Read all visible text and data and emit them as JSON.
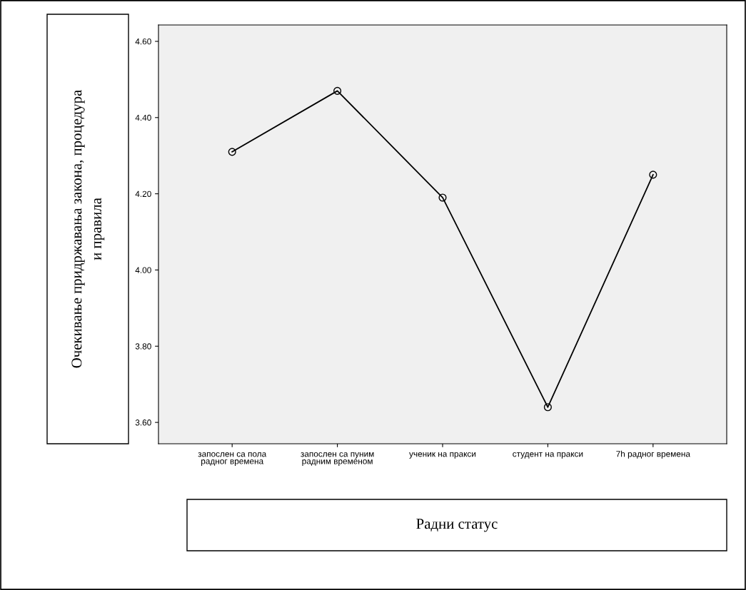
{
  "chart_data": {
    "type": "line",
    "categories": [
      "запослен са пола\nрадног времена",
      "запослен са пуним\nрадним временом",
      "ученик на пракси",
      "студент на пракси",
      "7h радног времена"
    ],
    "values": [
      4.31,
      4.47,
      4.19,
      3.64,
      4.25
    ],
    "color": "#000000",
    "ylim": [
      3.544,
      4.643
    ],
    "yticks": [
      {
        "value": 3.6,
        "label": "3.60"
      },
      {
        "value": 3.8,
        "label": "3.80"
      },
      {
        "value": 4.0,
        "label": "4.00"
      },
      {
        "value": 4.2,
        "label": "4.20"
      },
      {
        "value": 4.4,
        "label": "4.40"
      },
      {
        "value": 4.6,
        "label": "4.60"
      }
    ],
    "ylabel": "Очекивање придржавања закона, процедура\nи правила",
    "xlabel": "Радни статус",
    "marker": "circle",
    "line_style": "solid",
    "grid": false,
    "legend": false
  }
}
